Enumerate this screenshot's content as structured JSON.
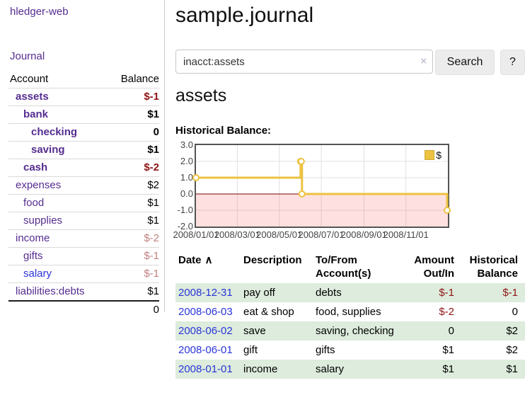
{
  "app": {
    "brand": "hledger-web",
    "nav": {
      "journal": "Journal"
    }
  },
  "sidebar": {
    "headers": {
      "account": "Account",
      "balance": "Balance"
    },
    "accounts": [
      {
        "name": "assets",
        "balance": "$-1",
        "depth": 1,
        "bold": true,
        "balance_color": "negative"
      },
      {
        "name": "bank",
        "balance": "$1",
        "depth": 2,
        "bold": true,
        "balance_color": "normal"
      },
      {
        "name": "checking",
        "balance": "0",
        "depth": 3,
        "bold": true,
        "balance_color": "normal"
      },
      {
        "name": "saving",
        "balance": "$1",
        "depth": 3,
        "bold": true,
        "balance_color": "normal"
      },
      {
        "name": "cash",
        "balance": "$-2",
        "depth": 2,
        "bold": true,
        "balance_color": "negative"
      },
      {
        "name": "expenses",
        "balance": "$2",
        "depth": 1,
        "bold": false,
        "balance_color": "normal"
      },
      {
        "name": "food",
        "balance": "$1",
        "depth": 2,
        "bold": false,
        "balance_color": "normal"
      },
      {
        "name": "supplies",
        "balance": "$1",
        "depth": 2,
        "bold": false,
        "balance_color": "normal"
      },
      {
        "name": "income",
        "balance": "$-2",
        "depth": 1,
        "bold": false,
        "balance_color": "muted-negative"
      },
      {
        "name": "gifts",
        "balance": "$-1",
        "depth": 2,
        "bold": false,
        "balance_color": "muted-negative"
      },
      {
        "name": "salary",
        "balance": "$-1",
        "depth": 2,
        "bold": false,
        "balance_color": "muted-negative",
        "link_color": "blue"
      },
      {
        "name": "liabilities:debts",
        "balance": "$1",
        "depth": 1,
        "bold": false,
        "balance_color": "normal"
      }
    ],
    "total": "0"
  },
  "page": {
    "title": "sample.journal"
  },
  "search": {
    "value": "inacct:assets",
    "clear_icon": "×",
    "search_button": "Search",
    "help_button": "?"
  },
  "account_view": {
    "heading": "assets",
    "section_label": "Historical Balance:"
  },
  "chart_data": {
    "type": "line",
    "style": "step-after",
    "title": "Historical Balance:",
    "legend": "$",
    "legend_position": "top-right",
    "grid": true,
    "ylim": [
      -2,
      3
    ],
    "xlim": [
      "2008/01/01",
      "2009/01/01"
    ],
    "y_ticks": [
      "3.0",
      "2.0",
      "1.0",
      "0.0",
      "-1.0",
      "-2.0"
    ],
    "x_ticks": [
      "2008/01/01",
      "2008/03/01",
      "2008/05/01",
      "2008/07/01",
      "2008/09/01",
      "2008/11/01"
    ],
    "series": [
      {
        "name": "$",
        "color": "#edc240",
        "points": [
          {
            "date": "2008/01/01",
            "value": 1.0
          },
          {
            "date": "2008/06/01",
            "value": 2.0
          },
          {
            "date": "2008/06/02",
            "value": 2.0
          },
          {
            "date": "2008/06/03",
            "value": 0.0
          },
          {
            "date": "2008/12/31",
            "value": -1.0
          }
        ]
      }
    ],
    "negative_region_fill": "#fbdada",
    "zero_line_color": "#7c0101"
  },
  "register": {
    "headers": {
      "date": "Date",
      "sort_icon": "∧",
      "description": "Description",
      "accounts": "To/From Account(s)",
      "amount": "Amount Out/In",
      "balance": "Historical Balance"
    },
    "rows": [
      {
        "date": "2008-12-31",
        "description": "pay off",
        "accounts": "debts",
        "amount": "$-1",
        "amount_negative": true,
        "balance": "$-1",
        "balance_negative": true
      },
      {
        "date": "2008-06-03",
        "description": "eat & shop",
        "accounts": "food, supplies",
        "amount": "$-2",
        "amount_negative": true,
        "balance": "0",
        "balance_negative": false
      },
      {
        "date": "2008-06-02",
        "description": "save",
        "accounts": "saving, checking",
        "amount": "0",
        "amount_negative": false,
        "balance": "$2",
        "balance_negative": false
      },
      {
        "date": "2008-06-01",
        "description": "gift",
        "accounts": "gifts",
        "amount": "$1",
        "amount_negative": false,
        "balance": "$2",
        "balance_negative": false
      },
      {
        "date": "2008-01-01",
        "description": "income",
        "accounts": "salary",
        "amount": "$1",
        "amount_negative": false,
        "balance": "$1",
        "balance_negative": false
      }
    ]
  },
  "colors": {
    "accent_purple": "#552d90",
    "link_blue": "#2a35d8",
    "negative_red": "#8f1515",
    "muted_negative_rose": "#c08080",
    "row_stripe_green": "#ddecdc",
    "chart_line_gold": "#edc240",
    "chart_negative_fill": "#fbdada",
    "chart_zero_line": "#7c0101",
    "chart_border": "#545454"
  }
}
